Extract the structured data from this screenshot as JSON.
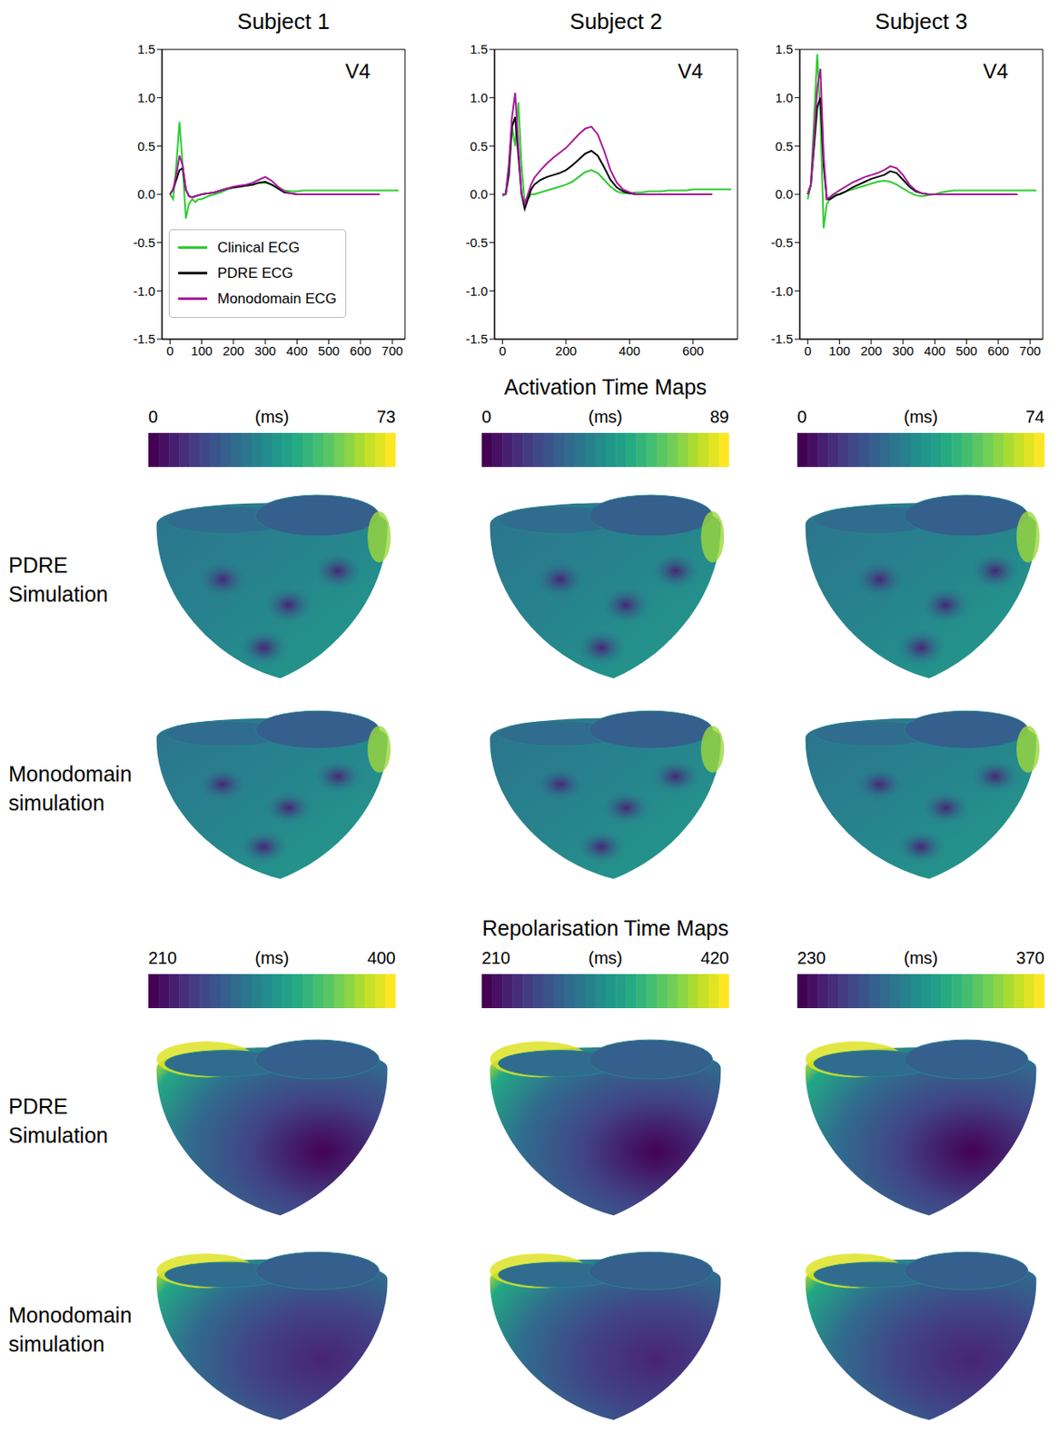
{
  "chart_data": [
    {
      "type": "line",
      "title": "Subject 1",
      "annotation": "V4",
      "grid": false,
      "legend": "lower left",
      "x": [
        0,
        10,
        20,
        30,
        40,
        50,
        60,
        70,
        80,
        90,
        100,
        120,
        140,
        160,
        180,
        200,
        220,
        240,
        260,
        280,
        300,
        320,
        340,
        360,
        380,
        400,
        420,
        440,
        460,
        480,
        500,
        520,
        540,
        560,
        580,
        600,
        620,
        640,
        660,
        680,
        700,
        720
      ],
      "xlim": [
        -25,
        740
      ],
      "xticks": [
        0,
        100,
        200,
        300,
        400,
        500,
        600,
        700
      ],
      "ylim": [
        -1.5,
        1.5
      ],
      "yticks": [
        -1.5,
        {
          "value": -1,
          "label": "-1.0"
        },
        -0.5,
        {
          "value": 0,
          "label": "0.0"
        },
        0.5,
        {
          "value": 1,
          "label": "1.0"
        },
        1.5
      ],
      "series": [
        {
          "name": "Clinical ECG",
          "color": "#2ecc2e",
          "values": [
            0,
            -0.05,
            0.3,
            0.75,
            0.3,
            -0.25,
            -0.1,
            -0.05,
            -0.08,
            -0.05,
            -0.05,
            -0.02,
            0,
            0.02,
            0.05,
            0.07,
            0.08,
            0.09,
            0.1,
            0.12,
            0.12,
            0.1,
            0.07,
            0.04,
            0.03,
            0.03,
            0.04,
            0.04,
            0.04,
            0.04,
            0.04,
            0.04,
            0.04,
            0.04,
            0.04,
            0.04,
            0.04,
            0.04,
            0.04,
            0.04,
            0.04,
            0.04
          ]
        },
        {
          "name": "PDRE ECG",
          "color": "#000000",
          "values": [
            0,
            0.05,
            0.15,
            0.25,
            0.27,
            0.05,
            -0.02,
            -0.03,
            -0.02,
            -0.01,
            0,
            0.01,
            0.02,
            0.04,
            0.06,
            0.07,
            0.08,
            0.09,
            0.1,
            0.12,
            0.13,
            0.1,
            0.06,
            0.02,
            0.01,
            0,
            0,
            0,
            0,
            0,
            0,
            0,
            0,
            0,
            0,
            0,
            0,
            0,
            0,
            null,
            null,
            null
          ]
        },
        {
          "name": "Monodomain ECG",
          "color": "#a8189a",
          "values": [
            0,
            0.05,
            0.2,
            0.4,
            0.3,
            0.05,
            -0.02,
            -0.03,
            -0.02,
            -0.01,
            0,
            0.01,
            0.02,
            0.04,
            0.06,
            0.08,
            0.09,
            0.1,
            0.12,
            0.15,
            0.18,
            0.14,
            0.08,
            0.03,
            0.01,
            0,
            0,
            0,
            0,
            0,
            0,
            0,
            0,
            0,
            0,
            0,
            0,
            0,
            0,
            null,
            null,
            null
          ]
        }
      ]
    },
    {
      "type": "line",
      "title": "Subject 2",
      "annotation": "V4",
      "grid": false,
      "x": [
        0,
        10,
        20,
        30,
        40,
        50,
        60,
        70,
        80,
        90,
        100,
        120,
        140,
        160,
        180,
        200,
        220,
        240,
        260,
        280,
        300,
        320,
        340,
        360,
        380,
        400,
        420,
        440,
        460,
        480,
        500,
        520,
        540,
        560,
        580,
        600,
        620,
        640,
        660,
        680,
        700,
        720
      ],
      "xlim": [
        -25,
        740
      ],
      "xticks": [
        0,
        200,
        400,
        600
      ],
      "ylim": [
        -1.5,
        1.5
      ],
      "yticks": [
        -1.5,
        {
          "value": -1,
          "label": "-1.0"
        },
        -0.5,
        {
          "value": 0,
          "label": "0.0"
        },
        0.5,
        {
          "value": 1,
          "label": "1.0"
        },
        1.5
      ],
      "series": [
        {
          "name": "Clinical ECG",
          "color": "#2ecc2e",
          "values": [
            -0.02,
            0,
            0.3,
            0.7,
            0.5,
            0.95,
            0.3,
            -0.1,
            -0.05,
            0,
            0,
            0.02,
            0.04,
            0.06,
            0.08,
            0.1,
            0.13,
            0.18,
            0.23,
            0.25,
            0.22,
            0.15,
            0.08,
            0.03,
            0.01,
            0.01,
            0.02,
            0.02,
            0.03,
            0.03,
            0.03,
            0.04,
            0.04,
            0.04,
            0.04,
            0.05,
            0.05,
            0.05,
            0.05,
            0.05,
            0.05,
            0.05
          ]
        },
        {
          "name": "PDRE ECG",
          "color": "#000000",
          "values": [
            0,
            0,
            0.2,
            0.7,
            0.8,
            0.4,
            0,
            -0.15,
            -0.05,
            0.05,
            0.1,
            0.15,
            0.18,
            0.2,
            0.22,
            0.25,
            0.3,
            0.36,
            0.42,
            0.45,
            0.4,
            0.28,
            0.15,
            0.07,
            0.03,
            0.01,
            0,
            0,
            0,
            0,
            0,
            0,
            0,
            0,
            0,
            0,
            0,
            0,
            0,
            null,
            null,
            null
          ]
        },
        {
          "name": "Monodomain ECG",
          "color": "#a8189a",
          "values": [
            0,
            0,
            0.3,
            0.8,
            1.05,
            0.5,
            0,
            -0.1,
            0,
            0.1,
            0.17,
            0.25,
            0.32,
            0.38,
            0.43,
            0.48,
            0.55,
            0.62,
            0.68,
            0.7,
            0.62,
            0.45,
            0.25,
            0.12,
            0.05,
            0.02,
            0,
            0,
            0,
            0,
            0,
            0,
            0,
            0,
            0,
            0,
            0,
            0,
            0,
            null,
            null,
            null
          ]
        }
      ]
    },
    {
      "type": "line",
      "title": "Subject 3",
      "annotation": "V4",
      "grid": false,
      "x": [
        0,
        10,
        20,
        30,
        40,
        50,
        60,
        70,
        80,
        90,
        100,
        120,
        140,
        160,
        180,
        200,
        220,
        240,
        260,
        280,
        300,
        320,
        340,
        360,
        380,
        400,
        420,
        440,
        460,
        480,
        500,
        520,
        540,
        560,
        580,
        600,
        620,
        640,
        660,
        680,
        700,
        720
      ],
      "xlim": [
        -25,
        740
      ],
      "xticks": [
        0,
        100,
        200,
        300,
        400,
        500,
        600,
        700
      ],
      "ylim": [
        -1.5,
        1.5
      ],
      "yticks": [
        -1.5,
        {
          "value": -1,
          "label": "-1.0"
        },
        -0.5,
        {
          "value": 0,
          "label": "0.0"
        },
        0.5,
        {
          "value": 1,
          "label": "1.0"
        },
        1.5
      ],
      "series": [
        {
          "name": "Clinical ECG",
          "color": "#2ecc2e",
          "values": [
            -0.05,
            0.1,
            0.8,
            1.45,
            0.8,
            -0.35,
            -0.1,
            -0.05,
            -0.02,
            0,
            0,
            0.03,
            0.05,
            0.07,
            0.09,
            0.11,
            0.13,
            0.14,
            0.13,
            0.1,
            0.06,
            0.02,
            -0.01,
            -0.02,
            -0.01,
            0,
            0.02,
            0.03,
            0.04,
            0.04,
            0.04,
            0.04,
            0.04,
            0.04,
            0.04,
            0.04,
            0.04,
            0.04,
            0.04,
            0.04,
            0.04,
            0.04
          ]
        },
        {
          "name": "PDRE ECG",
          "color": "#000000",
          "values": [
            0,
            0.1,
            0.5,
            0.9,
            1.0,
            0.3,
            -0.05,
            -0.05,
            -0.03,
            -0.01,
            0,
            0.03,
            0.07,
            0.1,
            0.13,
            0.16,
            0.18,
            0.2,
            0.24,
            0.22,
            0.15,
            0.08,
            0.03,
            0.01,
            0,
            0,
            0,
            0,
            0,
            0,
            0,
            0,
            0,
            0,
            0,
            0,
            0,
            0,
            0,
            null,
            null,
            null
          ]
        },
        {
          "name": "Monodomain ECG",
          "color": "#a8189a",
          "values": [
            0,
            0.1,
            0.6,
            1.1,
            1.3,
            0.4,
            -0.05,
            -0.03,
            0,
            0.02,
            0.04,
            0.08,
            0.12,
            0.15,
            0.18,
            0.2,
            0.22,
            0.25,
            0.29,
            0.27,
            0.2,
            0.1,
            0.04,
            0.01,
            0,
            0,
            0,
            0,
            0,
            0,
            0,
            0,
            0,
            0,
            0,
            0,
            0,
            0,
            0,
            null,
            null,
            null
          ]
        }
      ]
    }
  ],
  "maps": [
    {
      "title": "Activation Time Maps",
      "unit": "(ms)",
      "colorbar_ranges": [
        [
          0,
          73
        ],
        [
          0,
          89
        ],
        [
          0,
          74
        ]
      ],
      "rows": [
        "PDRE Simulation",
        "Monodomain simulation"
      ]
    },
    {
      "title": "Repolarisation Time Maps",
      "unit": "(ms)",
      "colorbar_ranges": [
        [
          210,
          400
        ],
        [
          210,
          420
        ],
        [
          230,
          370
        ]
      ],
      "rows": [
        "PDRE Simulation",
        "Monodomain simulation"
      ]
    }
  ]
}
